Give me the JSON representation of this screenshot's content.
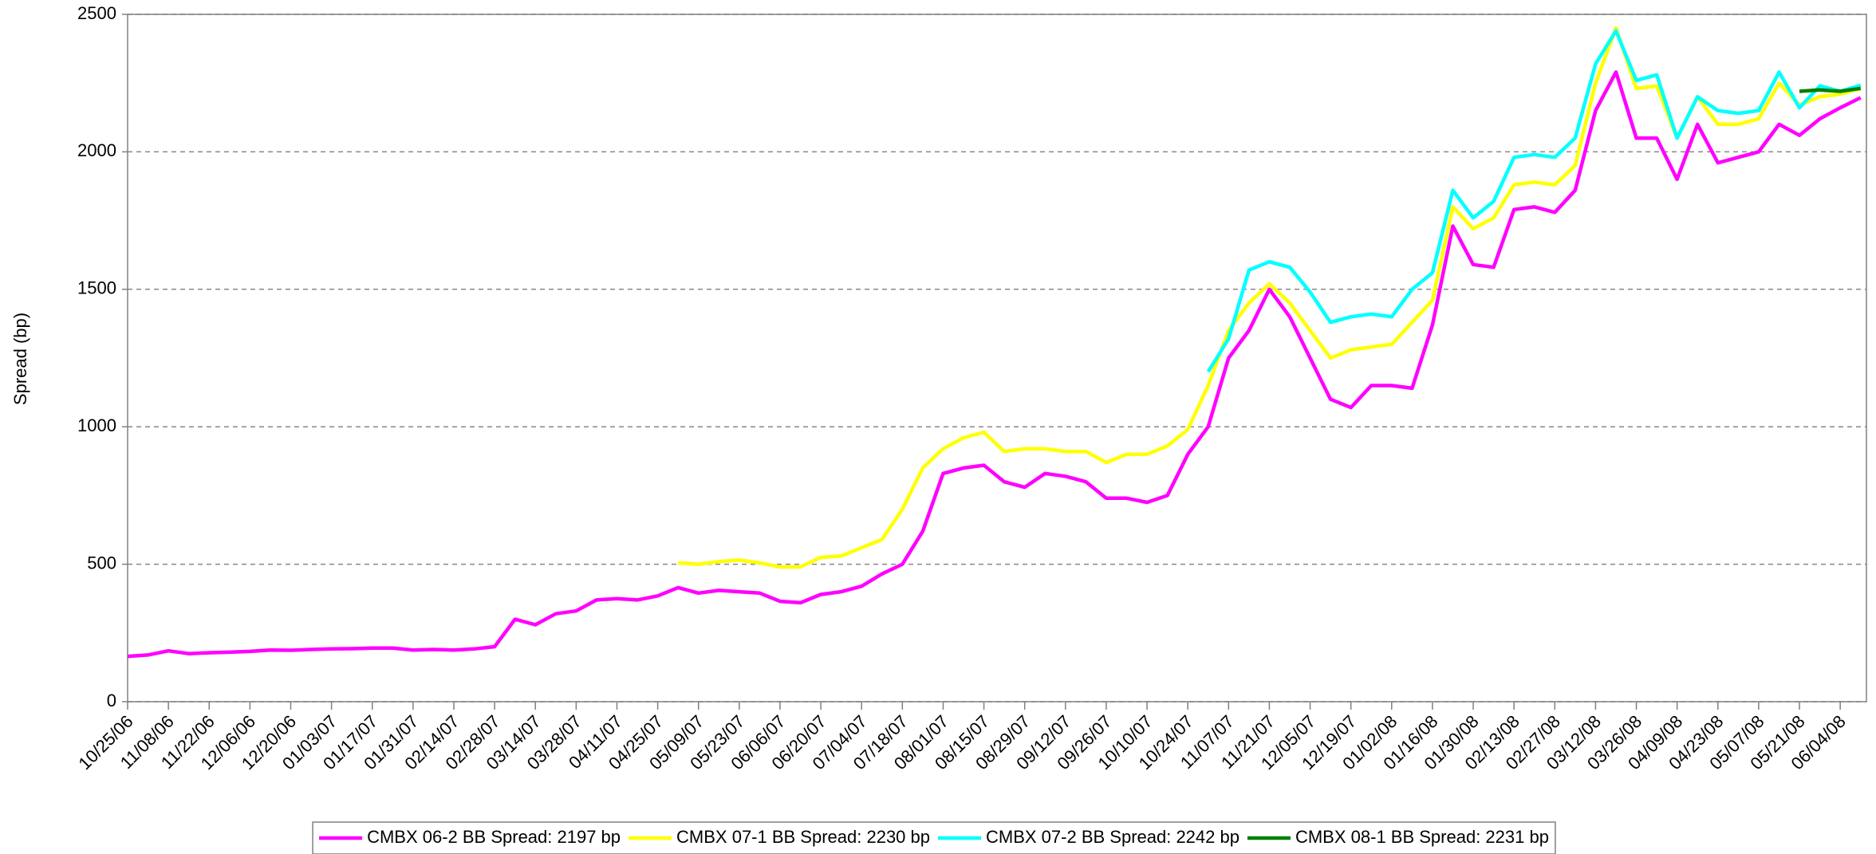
{
  "chart_data": {
    "type": "line",
    "y_label": "Spread (bp)",
    "x": [
      "10/25/06",
      "11/01/06",
      "11/08/06",
      "11/15/06",
      "11/22/06",
      "11/29/06",
      "12/06/06",
      "12/13/06",
      "12/20/06",
      "12/27/06",
      "01/03/07",
      "01/10/07",
      "01/17/07",
      "01/24/07",
      "01/31/07",
      "02/07/07",
      "02/14/07",
      "02/21/07",
      "02/28/07",
      "03/07/07",
      "03/14/07",
      "03/21/07",
      "03/28/07",
      "04/04/07",
      "04/11/07",
      "04/18/07",
      "04/25/07",
      "05/02/07",
      "05/09/07",
      "05/16/07",
      "05/23/07",
      "05/30/07",
      "06/06/07",
      "06/13/07",
      "06/20/07",
      "06/27/07",
      "07/04/07",
      "07/11/07",
      "07/18/07",
      "07/25/07",
      "08/01/07",
      "08/08/07",
      "08/15/07",
      "08/22/07",
      "08/29/07",
      "09/05/07",
      "09/12/07",
      "09/19/07",
      "09/26/07",
      "10/03/07",
      "10/10/07",
      "10/17/07",
      "10/24/07",
      "10/31/07",
      "11/07/07",
      "11/14/07",
      "11/21/07",
      "11/28/07",
      "12/05/07",
      "12/12/07",
      "12/19/07",
      "12/26/07",
      "01/02/08",
      "01/09/08",
      "01/16/08",
      "01/23/08",
      "01/30/08",
      "02/06/08",
      "02/13/08",
      "02/20/08",
      "02/27/08",
      "03/05/08",
      "03/12/08",
      "03/19/08",
      "03/26/08",
      "04/02/08",
      "04/09/08",
      "04/16/08",
      "04/23/08",
      "04/30/08",
      "05/07/08",
      "05/14/08",
      "05/21/08",
      "05/28/08",
      "06/04/08",
      "06/11/08"
    ],
    "xlim": [
      "10/25/06",
      "06/13/08"
    ],
    "xticks": [
      "10/25/06",
      "11/08/06",
      "11/22/06",
      "12/06/06",
      "12/20/06",
      "01/03/07",
      "01/17/07",
      "01/31/07",
      "02/14/07",
      "02/28/07",
      "03/14/07",
      "03/28/07",
      "04/11/07",
      "04/25/07",
      "05/09/07",
      "05/23/07",
      "06/06/07",
      "06/20/07",
      "07/04/07",
      "07/18/07",
      "08/01/07",
      "08/15/07",
      "08/29/07",
      "09/12/07",
      "09/26/07",
      "10/10/07",
      "10/24/07",
      "11/07/07",
      "11/21/07",
      "12/05/07",
      "12/19/07",
      "01/02/08",
      "01/16/08",
      "01/30/08",
      "02/13/08",
      "02/27/08",
      "03/12/08",
      "03/26/08",
      "04/09/08",
      "04/23/08",
      "05/07/08",
      "05/21/08",
      "06/04/08"
    ],
    "ylim": [
      0,
      2500
    ],
    "yticks": [
      0,
      500,
      1000,
      1500,
      2000,
      2500
    ],
    "grid": true,
    "legend": "bottom",
    "series": [
      {
        "name": "CMBX 06-2 BB Spread: 2197 bp",
        "color": "#ff00ff",
        "values": [
          165,
          170,
          185,
          175,
          178,
          180,
          183,
          188,
          187,
          190,
          192,
          193,
          195,
          195,
          188,
          190,
          188,
          192,
          200,
          300,
          280,
          320,
          330,
          370,
          375,
          370,
          385,
          415,
          395,
          405,
          400,
          395,
          365,
          360,
          390,
          400,
          420,
          465,
          500,
          620,
          830,
          850,
          860,
          800,
          780,
          830,
          820,
          800,
          740,
          740,
          725,
          750,
          900,
          1000,
          1250,
          1350,
          1500,
          1400,
          1250,
          1100,
          1070,
          1150,
          1150,
          1140,
          1370,
          1730,
          1590,
          1580,
          1790,
          1800,
          1780,
          1860,
          2150,
          2290,
          2050,
          2050,
          1900,
          2100,
          1960,
          1980,
          2000,
          2100,
          2060,
          2120,
          2160,
          2197
        ]
      },
      {
        "name": "CMBX 07-1 BB Spread: 2230 bp",
        "color": "#ffff00",
        "values": [
          null,
          null,
          null,
          null,
          null,
          null,
          null,
          null,
          null,
          null,
          null,
          null,
          null,
          null,
          null,
          null,
          null,
          null,
          null,
          null,
          null,
          null,
          null,
          null,
          null,
          null,
          null,
          505,
          500,
          510,
          515,
          505,
          490,
          490,
          525,
          530,
          560,
          590,
          700,
          850,
          920,
          960,
          980,
          910,
          920,
          920,
          910,
          910,
          870,
          900,
          900,
          930,
          990,
          1150,
          1350,
          1450,
          1520,
          1450,
          1350,
          1250,
          1280,
          1290,
          1300,
          1380,
          1460,
          1800,
          1720,
          1760,
          1880,
          1890,
          1880,
          1950,
          2250,
          2450,
          2230,
          2240,
          2050,
          2200,
          2100,
          2100,
          2120,
          2250,
          2170,
          2200,
          2210,
          2230
        ]
      },
      {
        "name": "CMBX 07-2 BB Spread: 2242 bp",
        "color": "#00ffff",
        "values": [
          null,
          null,
          null,
          null,
          null,
          null,
          null,
          null,
          null,
          null,
          null,
          null,
          null,
          null,
          null,
          null,
          null,
          null,
          null,
          null,
          null,
          null,
          null,
          null,
          null,
          null,
          null,
          null,
          null,
          null,
          null,
          null,
          null,
          null,
          null,
          null,
          null,
          null,
          null,
          null,
          null,
          null,
          null,
          null,
          null,
          null,
          null,
          null,
          null,
          null,
          null,
          null,
          null,
          1200,
          1320,
          1570,
          1600,
          1580,
          1490,
          1380,
          1400,
          1410,
          1400,
          1500,
          1560,
          1860,
          1760,
          1820,
          1980,
          1990,
          1980,
          2050,
          2320,
          2440,
          2260,
          2280,
          2050,
          2200,
          2150,
          2140,
          2150,
          2290,
          2160,
          2240,
          2220,
          2242
        ]
      },
      {
        "name": "CMBX 08-1 BB Spread: 2231 bp",
        "color": "#008000",
        "values": [
          null,
          null,
          null,
          null,
          null,
          null,
          null,
          null,
          null,
          null,
          null,
          null,
          null,
          null,
          null,
          null,
          null,
          null,
          null,
          null,
          null,
          null,
          null,
          null,
          null,
          null,
          null,
          null,
          null,
          null,
          null,
          null,
          null,
          null,
          null,
          null,
          null,
          null,
          null,
          null,
          null,
          null,
          null,
          null,
          null,
          null,
          null,
          null,
          null,
          null,
          null,
          null,
          null,
          null,
          null,
          null,
          null,
          null,
          null,
          null,
          null,
          null,
          null,
          null,
          null,
          null,
          null,
          null,
          null,
          null,
          null,
          null,
          null,
          null,
          null,
          null,
          null,
          null,
          null,
          null,
          null,
          null,
          2220,
          2225,
          2220,
          2231
        ]
      }
    ]
  }
}
